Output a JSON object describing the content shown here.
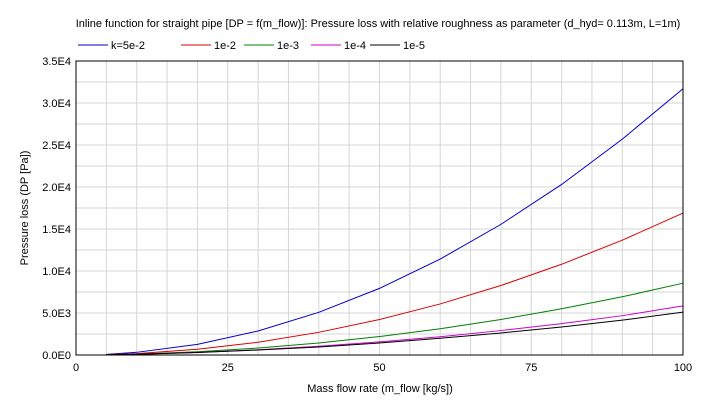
{
  "chart_data": {
    "type": "line",
    "title": "Inline function for straight pipe [DP = f(m_flow)]: Pressure loss with relative roughness as parameter (d_hyd= 0.113m, L=1m)",
    "xlabel": "Mass flow rate (m_flow [kg/s])",
    "ylabel": "Pressure loss (DP [Pa])",
    "xlim": [
      0,
      100
    ],
    "ylim": [
      0,
      35000
    ],
    "x_ticks": [
      0,
      25,
      50,
      75,
      100
    ],
    "x_tick_labels": [
      "0",
      "25",
      "50",
      "75",
      "100"
    ],
    "y_ticks": [
      0,
      5000,
      10000,
      15000,
      20000,
      25000,
      30000,
      35000
    ],
    "y_tick_labels": [
      "0.0E0",
      "5.0E3",
      "1.0E4",
      "1.5E4",
      "2.0E4",
      "2.5E4",
      "3.0E4",
      "3.5E4"
    ],
    "grid": true,
    "legend_position": "top",
    "series": [
      {
        "name": "k=5e-2",
        "color": "#0000cc",
        "x": [
          5,
          10,
          20,
          30,
          40,
          50,
          60,
          70,
          80,
          90,
          100
        ],
        "values": [
          80,
          320,
          1270,
          2860,
          5080,
          7930,
          11420,
          15550,
          20300,
          25700,
          31700
        ]
      },
      {
        "name": "1e-2",
        "color": "#dd0000",
        "x": [
          5,
          10,
          20,
          30,
          40,
          50,
          60,
          70,
          80,
          90,
          100
        ],
        "values": [
          45,
          170,
          680,
          1520,
          2700,
          4220,
          6080,
          8270,
          10800,
          13670,
          16900
        ]
      },
      {
        "name": "1e-3",
        "color": "#008000",
        "x": [
          5,
          10,
          20,
          30,
          40,
          50,
          60,
          70,
          80,
          90,
          100
        ],
        "values": [
          30,
          110,
          390,
          830,
          1430,
          2200,
          3130,
          4230,
          5500,
          6930,
          8550
        ]
      },
      {
        "name": "1e-4",
        "color": "#cc00cc",
        "x": [
          5,
          10,
          20,
          30,
          40,
          50,
          60,
          70,
          80,
          90,
          100
        ],
        "values": [
          25,
          90,
          300,
          620,
          1040,
          1560,
          2180,
          2910,
          3740,
          4680,
          5850
        ]
      },
      {
        "name": "1e-5",
        "color": "#000000",
        "x": [
          5,
          10,
          20,
          30,
          40,
          50,
          60,
          70,
          80,
          90,
          100
        ],
        "values": [
          24,
          85,
          290,
          590,
          960,
          1430,
          1990,
          2620,
          3340,
          4150,
          5100
        ]
      }
    ]
  }
}
